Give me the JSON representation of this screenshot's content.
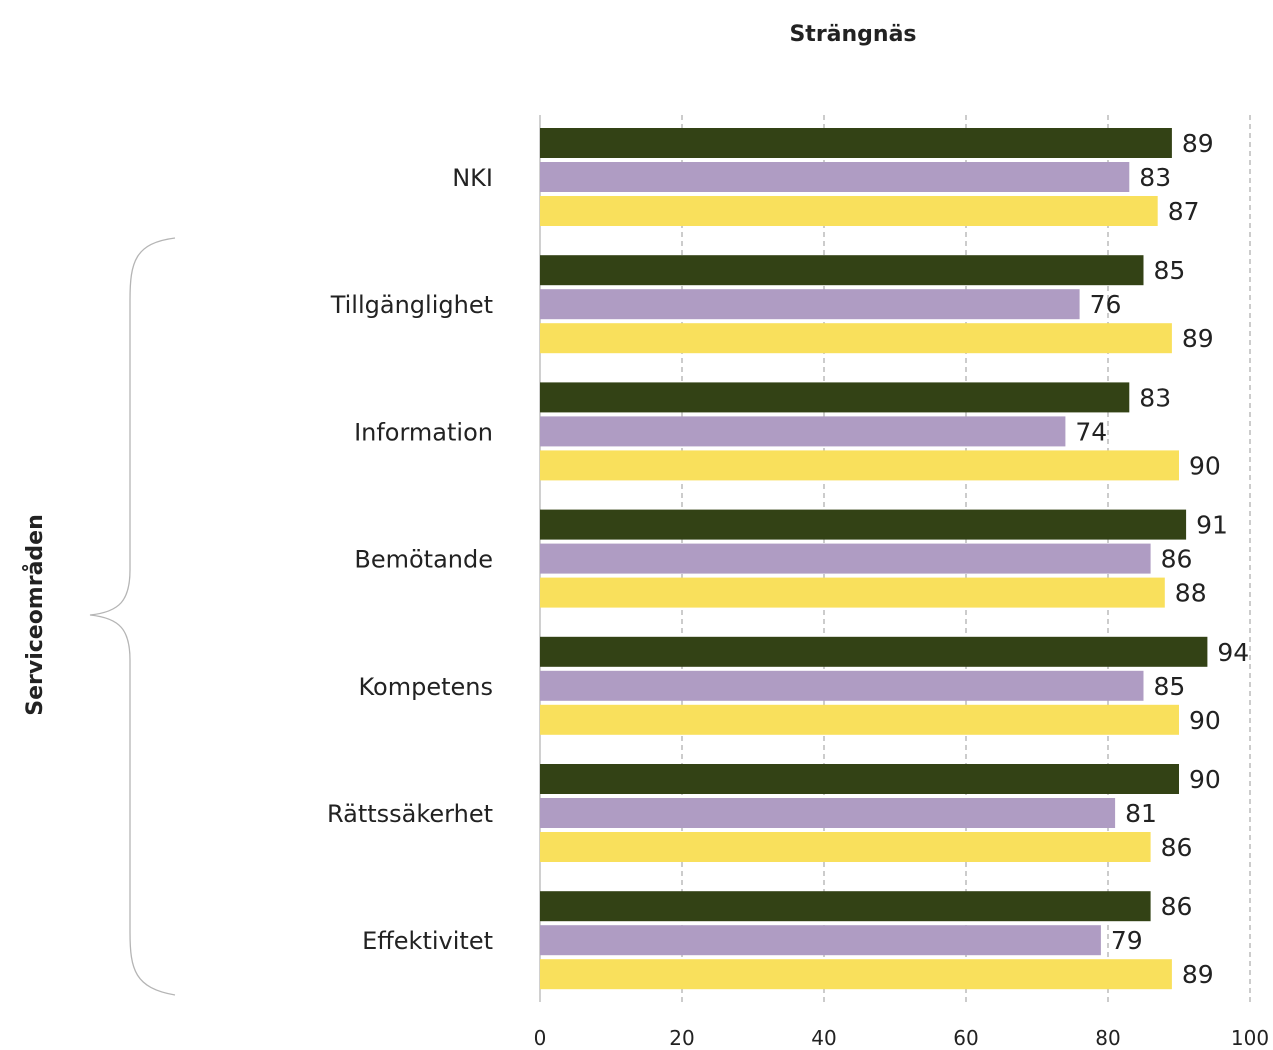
{
  "chart_data": {
    "type": "bar",
    "orientation": "horizontal",
    "title": "Strängnäs",
    "ylabel": "Serviceområden",
    "xlabel": "",
    "xlim": [
      0,
      100
    ],
    "xticks": [
      0,
      20,
      40,
      60,
      80,
      100
    ],
    "grid": "vertical-dashed",
    "categories": [
      "NKI",
      "Tillgänglighet",
      "Information",
      "Bemötande",
      "Kompetens",
      "Rättssäkerhet",
      "Effektivitet"
    ],
    "series": [
      {
        "color": "#334215",
        "values": [
          89,
          85,
          83,
          91,
          94,
          90,
          86
        ]
      },
      {
        "color": "#AF9CC3",
        "values": [
          83,
          76,
          74,
          86,
          85,
          81,
          79
        ]
      },
      {
        "color": "#F9E05C",
        "values": [
          87,
          89,
          90,
          88,
          90,
          86,
          89
        ]
      }
    ]
  }
}
